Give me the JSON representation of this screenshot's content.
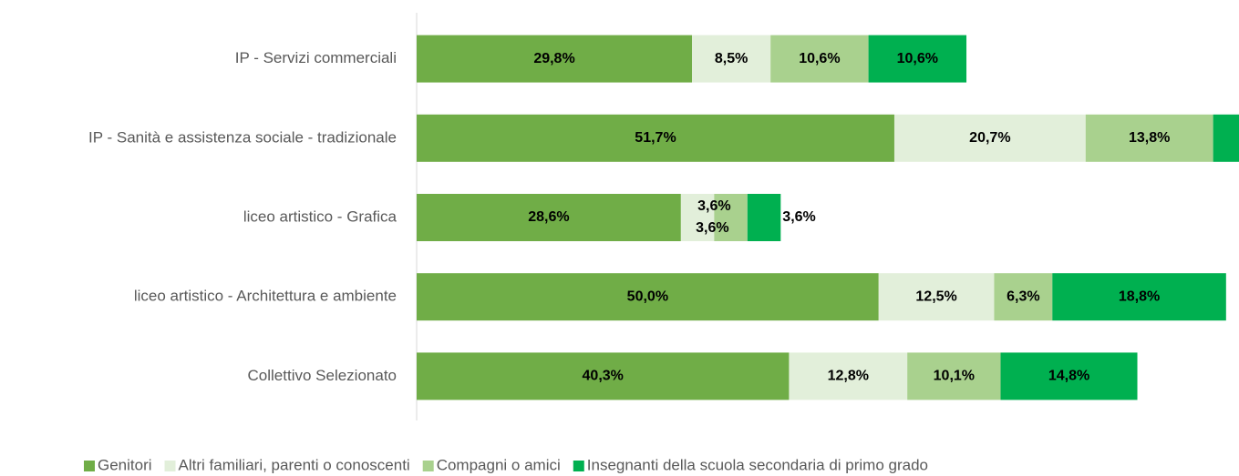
{
  "chart_data": {
    "type": "stacked_bar_horizontal",
    "categories": [
      "IP - Servizi commerciali",
      "IP - Sanità e assistenza sociale - tradizionale",
      "liceo artistico - Grafica",
      "liceo artistico - Architettura e ambiente",
      "Collettivo Selezionato"
    ],
    "xlim": [
      0,
      89
    ],
    "series": [
      {
        "name": "Genitori",
        "color": "#70ad47",
        "values": [
          29.8,
          51.7,
          28.6,
          50.0,
          40.3
        ],
        "value_labels": [
          "29,8%",
          "51,7%",
          "28,6%",
          "50,0%",
          "40,3%"
        ]
      },
      {
        "name": "Altri familiari, parenti o conoscenti",
        "color": "#e2efda",
        "values": [
          8.5,
          20.7,
          3.6,
          12.5,
          12.8
        ],
        "value_labels": [
          "8,5%",
          "20,7%",
          "3,6%",
          "12,5%",
          "12,8%"
        ]
      },
      {
        "name": "Compagni o amici",
        "color": "#a9d18e",
        "values": [
          10.6,
          13.8,
          3.6,
          6.3,
          10.1
        ],
        "value_labels": [
          "10,6%",
          "13,8%",
          "3,6%",
          "6,3%",
          "10,1%"
        ]
      },
      {
        "name": "Insegnanti della scuola secondaria di primo grado",
        "color": "#00b050",
        "values": [
          10.6,
          6.9,
          3.6,
          18.8,
          14.8
        ],
        "value_labels": [
          "10,6%",
          null,
          "3,6%",
          "18,8%",
          "14,8%"
        ]
      }
    ],
    "legend": "bottom"
  }
}
